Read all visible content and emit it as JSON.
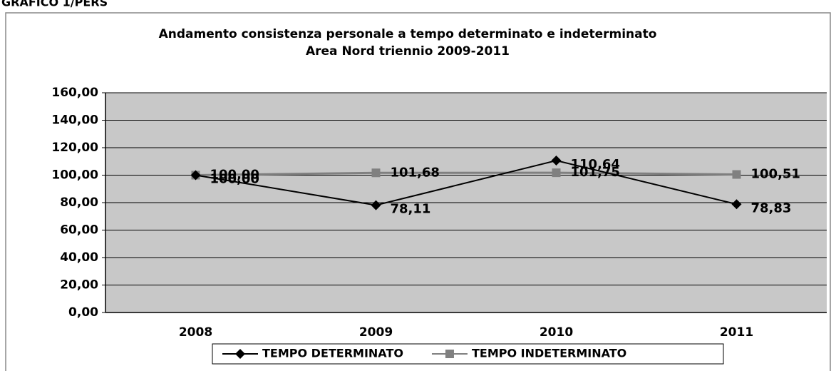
{
  "caption": "GRAFICO 1/PERS",
  "chart_data": {
    "type": "line",
    "title": "Andamento consistenza personale a tempo determinato e indeterminato",
    "subtitle": "Area Nord  triennio 2009-2011",
    "categories": [
      "2008",
      "2009",
      "2010",
      "2011"
    ],
    "series": [
      {
        "name": "TEMPO DETERMINATO",
        "color": "#000000",
        "marker": "diamond",
        "values": [
          100,
          78.11,
          110.64,
          78.83
        ],
        "value_labels": [
          "100,00",
          "78,11",
          "110,64",
          "78,83"
        ]
      },
      {
        "name": "TEMPO INDETERMINATO",
        "color": "#808080",
        "marker": "square",
        "values": [
          100,
          101.68,
          101.75,
          100.51
        ],
        "value_labels": [
          "100,00",
          "101,68",
          "101,75",
          "100,51"
        ]
      }
    ],
    "ylim": [
      0,
      160
    ],
    "yticks": [
      {
        "value": 0,
        "label": "0,00"
      },
      {
        "value": 20,
        "label": "20,00"
      },
      {
        "value": 40,
        "label": "40,00"
      },
      {
        "value": 60,
        "label": "60,00"
      },
      {
        "value": 80,
        "label": "80,00"
      },
      {
        "value": 100,
        "label": "100,00"
      },
      {
        "value": 120,
        "label": "120,00"
      },
      {
        "value": 140,
        "label": "140,00"
      },
      {
        "value": 160,
        "label": "160,00"
      }
    ],
    "grid": true,
    "legend": "bottom"
  }
}
